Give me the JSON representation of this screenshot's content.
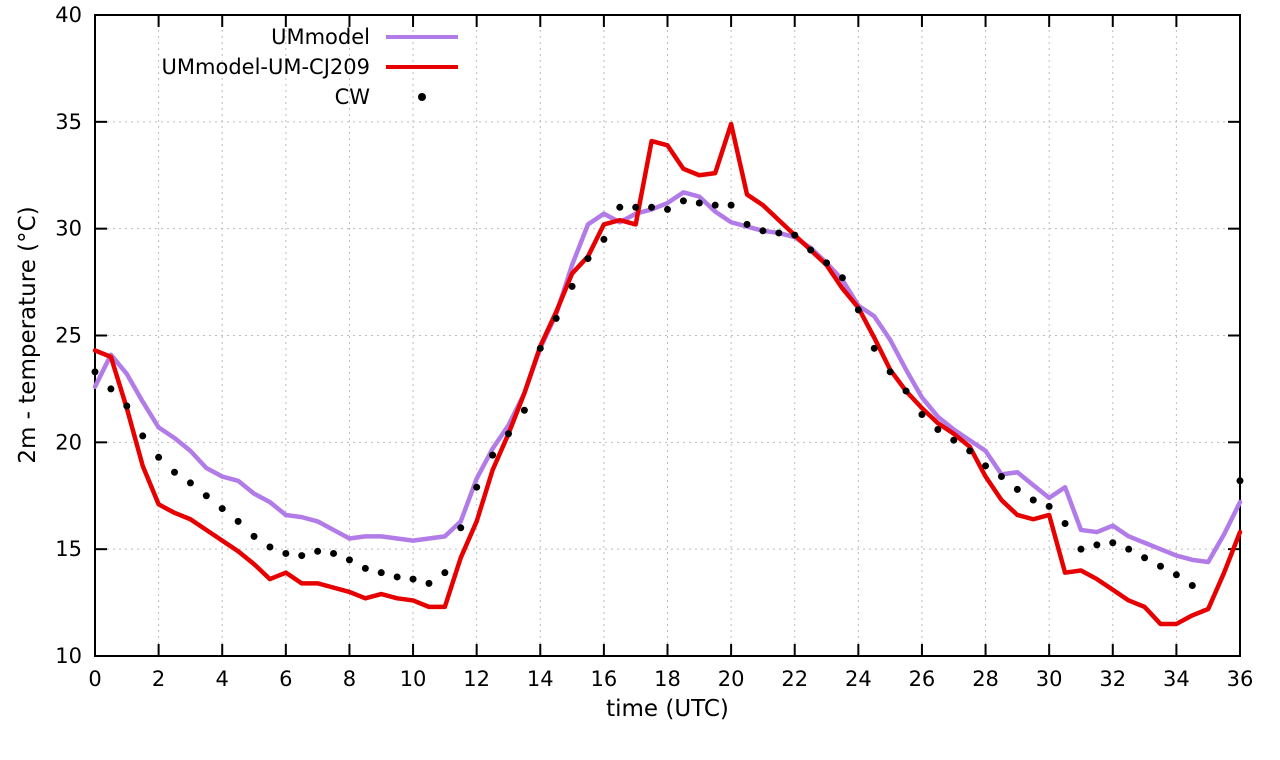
{
  "chart_data": {
    "type": "line",
    "title": "",
    "xlabel": "time (UTC)",
    "ylabel": "2m - temperature (°C)",
    "xlim": [
      0,
      36
    ],
    "ylim": [
      10,
      40
    ],
    "xticks": {
      "step": 2
    },
    "yticks": {
      "step": 5
    },
    "grid": true,
    "legend_position": "top-inside-left",
    "background": "#ffffff",
    "x": [
      0,
      0.5,
      1,
      1.5,
      2,
      2.5,
      3,
      3.5,
      4,
      4.5,
      5,
      5.5,
      6,
      6.5,
      7,
      7.5,
      8,
      8.5,
      9,
      9.5,
      10,
      10.5,
      11,
      11.5,
      12,
      12.5,
      13,
      13.5,
      14,
      14.5,
      15,
      15.5,
      16,
      16.5,
      17,
      17.5,
      18,
      18.5,
      19,
      19.5,
      20,
      20.5,
      21,
      21.5,
      22,
      22.5,
      23,
      23.5,
      24,
      24.5,
      25,
      25.5,
      26,
      26.5,
      27,
      27.5,
      28,
      28.5,
      29,
      29.5,
      30,
      30.5,
      31,
      31.5,
      32,
      32.5,
      33,
      33.5,
      34,
      34.5,
      35,
      35.5,
      36
    ],
    "series": [
      {
        "name": "UMmodel",
        "type": "line",
        "color": "#b27ce8",
        "width": 4.5,
        "y": [
          22.6,
          24.1,
          23.2,
          21.9,
          20.7,
          20.2,
          19.6,
          18.8,
          18.4,
          18.2,
          17.6,
          17.2,
          16.6,
          16.5,
          16.3,
          15.9,
          15.5,
          15.6,
          15.6,
          15.5,
          15.4,
          15.5,
          15.6,
          16.3,
          18.3,
          19.7,
          20.8,
          22.3,
          24.4,
          26.0,
          28.3,
          30.2,
          30.7,
          30.3,
          30.7,
          30.9,
          31.2,
          31.7,
          31.5,
          30.8,
          30.3,
          30.1,
          29.9,
          29.8,
          29.6,
          29.1,
          28.4,
          27.6,
          26.4,
          25.9,
          24.8,
          23.4,
          22.1,
          21.2,
          20.6,
          20.1,
          19.6,
          18.5,
          18.6,
          18.0,
          17.4,
          17.9,
          15.9,
          15.8,
          16.1,
          15.6,
          15.3,
          15.0,
          14.7,
          14.5,
          14.4,
          15.7,
          17.2
        ]
      },
      {
        "name": "UMmodel-UM-CJ209",
        "type": "line",
        "color": "#e60000",
        "width": 4.5,
        "y": [
          24.3,
          24.0,
          21.6,
          18.9,
          17.1,
          16.7,
          16.4,
          15.9,
          15.4,
          14.9,
          14.3,
          13.6,
          13.9,
          13.4,
          13.4,
          13.2,
          13.0,
          12.7,
          12.9,
          12.7,
          12.6,
          12.3,
          12.3,
          14.6,
          16.3,
          18.7,
          20.4,
          22.3,
          24.5,
          26.1,
          27.9,
          28.7,
          30.2,
          30.4,
          30.2,
          34.1,
          33.9,
          32.8,
          32.5,
          32.6,
          34.9,
          31.6,
          31.1,
          30.4,
          29.7,
          29.0,
          28.3,
          27.2,
          26.3,
          24.9,
          23.4,
          22.4,
          21.6,
          20.9,
          20.4,
          19.8,
          18.4,
          17.3,
          16.6,
          16.4,
          16.6,
          13.9,
          14.0,
          13.6,
          13.1,
          12.6,
          12.3,
          11.5,
          11.5,
          11.9,
          12.2,
          13.9,
          15.8
        ]
      },
      {
        "name": "CW",
        "type": "scatter",
        "color": "#000000",
        "marker": "dot",
        "size": 3.5,
        "y": [
          23.3,
          22.5,
          21.7,
          20.3,
          19.3,
          18.6,
          18.1,
          17.5,
          16.9,
          16.3,
          15.6,
          15.1,
          14.8,
          14.7,
          14.9,
          14.8,
          14.5,
          14.1,
          13.9,
          13.7,
          13.6,
          13.4,
          13.9,
          16.0,
          17.9,
          19.4,
          20.4,
          21.5,
          24.4,
          25.8,
          27.3,
          28.6,
          29.5,
          31.0,
          31.0,
          31.0,
          30.9,
          31.3,
          31.2,
          31.1,
          31.1,
          30.2,
          29.9,
          29.8,
          29.7,
          29.0,
          28.4,
          27.7,
          26.2,
          24.4,
          23.3,
          22.4,
          21.3,
          20.6,
          20.1,
          19.6,
          18.9,
          18.4,
          17.8,
          17.3,
          17.0,
          16.2,
          15.0,
          15.2,
          15.3,
          15.0,
          14.6,
          14.2,
          13.8,
          13.3,
          null,
          null,
          18.2
        ]
      }
    ]
  }
}
